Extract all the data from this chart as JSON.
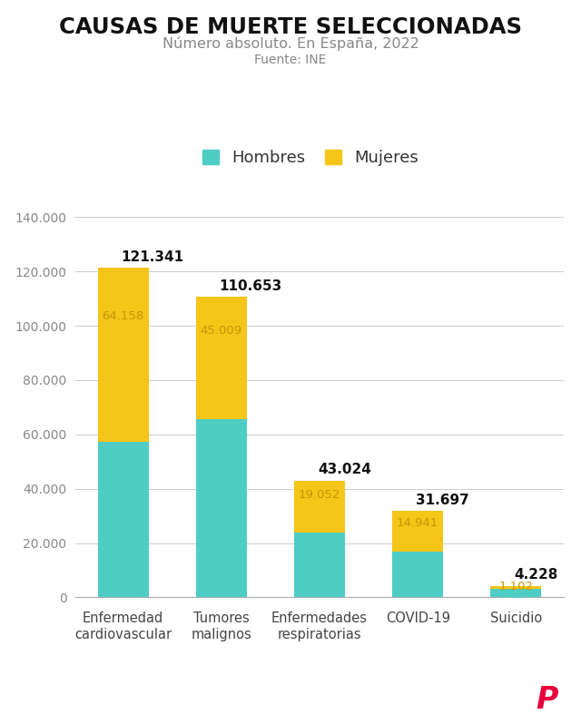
{
  "title": "CAUSAS DE MUERTE SELECCIONADAS",
  "subtitle": "Número absoluto. En España, 2022",
  "source": "Fuente: INE",
  "categories": [
    "Enfermedad\ncardiovascular",
    "Tumores\nmalignos",
    "Enfermedades\nrespiratorias",
    "COVID-19",
    "Suicidio"
  ],
  "hombres": [
    57183,
    65644,
    23972,
    16756,
    3126
  ],
  "mujeres": [
    64158,
    45009,
    19052,
    14941,
    1102
  ],
  "totals": [
    121341,
    110653,
    43024,
    31697,
    4228
  ],
  "color_hombres": "#4ECDC4",
  "color_mujeres": "#F5C518",
  "background": "#FFFFFF",
  "title_color": "#111111",
  "subtitle_color": "#888888",
  "source_color": "#888888",
  "hombres_label_color": "#4ECDC4",
  "mujeres_label_color": "#C8960A",
  "total_label_color": "#111111",
  "ytick_color": "#888888",
  "xtick_color": "#444444",
  "ylim": [
    0,
    148000
  ],
  "yticks": [
    0,
    20000,
    40000,
    60000,
    80000,
    100000,
    120000,
    140000
  ]
}
